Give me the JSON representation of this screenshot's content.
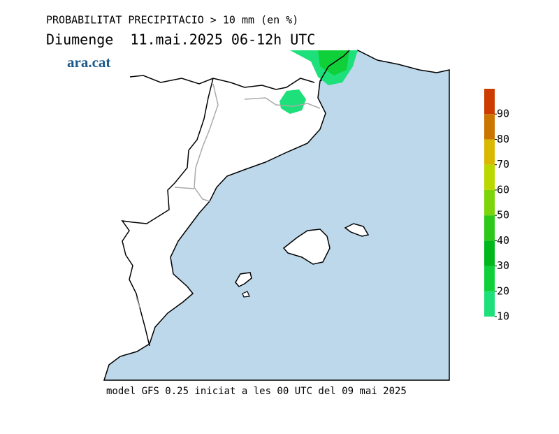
{
  "header": {
    "title": "PROBABILITAT PRECIPITACIO > 10 mm (en %)",
    "subtitle": "Diumenge  11.mai.2025 06-12h UTC"
  },
  "logo": "ara.cat",
  "footer": "model GFS 0.25 iniciat a les 00 UTC del 09 mai 2025",
  "legend": {
    "lim": [
      10,
      100
    ],
    "bounds": [
      10,
      20,
      30,
      40,
      50,
      60,
      70,
      80,
      90,
      100
    ],
    "colors": [
      "#1ee07a",
      "#10d03a",
      "#00b81c",
      "#2ec81a",
      "#7cd40a",
      "#b8d800",
      "#d8b800",
      "#cc7400",
      "#cc3c00"
    ],
    "ticks": [
      10,
      20,
      30,
      40,
      50,
      60,
      70,
      80,
      90
    ]
  }
}
